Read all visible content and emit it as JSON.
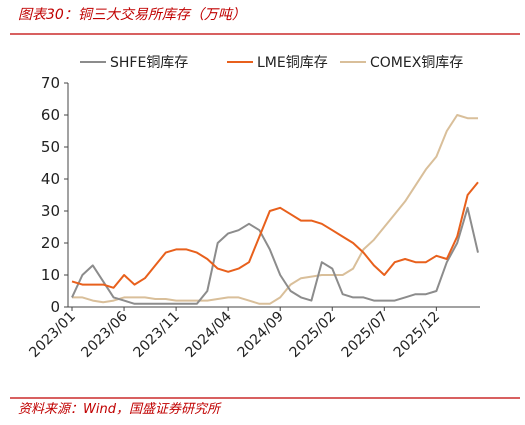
{
  "chart_data": {
    "type": "line",
    "title": "图表30：铜三大交易所库存（万吨）",
    "source": "资料来源：Wind，国盛证券研究所",
    "categories": [
      "2023/01",
      null,
      null,
      null,
      null,
      "2023/06",
      null,
      null,
      null,
      null,
      "2023/11",
      null,
      null,
      null,
      null,
      "2024/04",
      null,
      null,
      null,
      null,
      "2024/09",
      null,
      null,
      null,
      null,
      "2025/02",
      null,
      null,
      null,
      null,
      "2025/07",
      null,
      null,
      null,
      null,
      "2025/12",
      null,
      null,
      null,
      null
    ],
    "series": [
      {
        "name": "SHFE铜库存",
        "color": "#8c8c8c",
        "values": [
          3,
          10,
          13,
          8,
          3,
          2,
          1,
          1,
          1,
          1,
          1,
          1,
          1,
          5,
          20,
          23,
          24,
          26,
          24,
          18,
          10,
          5,
          3,
          2,
          14,
          12,
          4,
          3,
          3,
          2,
          2,
          2,
          3,
          4,
          4,
          5,
          14,
          20,
          31,
          17
        ]
      },
      {
        "name": "LME铜库存",
        "color": "#e8601c",
        "values": [
          8,
          7,
          7,
          7,
          6,
          10,
          7,
          9,
          13,
          17,
          18,
          18,
          17,
          15,
          12,
          11,
          12,
          14,
          22,
          30,
          31,
          29,
          27,
          27,
          26,
          24,
          22,
          20,
          17,
          13,
          10,
          14,
          15,
          14,
          14,
          16,
          15,
          22,
          35,
          39
        ]
      },
      {
        "name": "COMEX铜库存",
        "color": "#d9bf9a",
        "values": [
          3,
          3,
          2,
          1.5,
          2,
          3,
          3,
          3,
          2.5,
          2.5,
          2,
          2,
          2,
          2,
          2.5,
          3,
          3,
          2,
          1,
          1,
          3,
          7,
          9,
          9.5,
          10,
          10,
          10,
          12,
          18,
          21,
          25,
          29,
          33,
          38,
          43,
          47,
          55,
          60,
          59,
          59
        ]
      }
    ],
    "ylim": [
      0,
      70
    ],
    "yticks": [
      0,
      10,
      20,
      30,
      40,
      50,
      60,
      70
    ],
    "legend": "top",
    "grid": false
  }
}
